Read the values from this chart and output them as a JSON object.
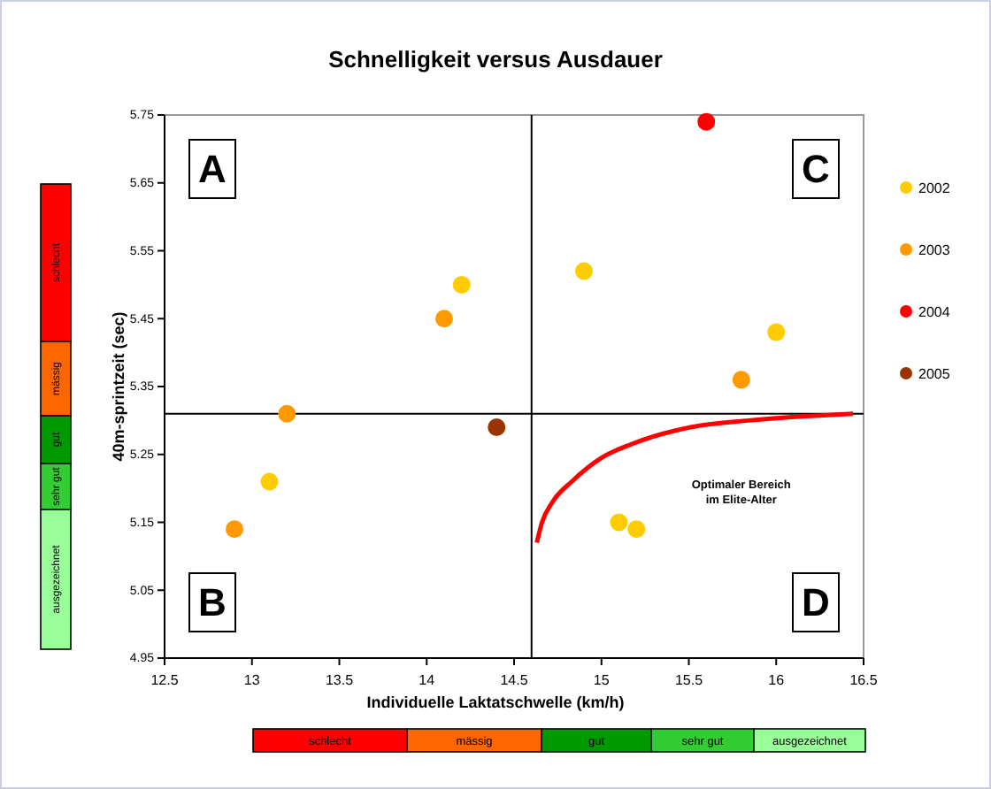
{
  "chart_data": {
    "type": "scatter",
    "title": "Schnelligkeit versus Ausdauer",
    "xlabel": "Individuelle Laktatschwelle (km/h)",
    "ylabel": "40m-sprintzeit (sec)",
    "xlim": [
      12.5,
      16.5
    ],
    "xticks": [
      12.5,
      13,
      13.5,
      14,
      14.5,
      15,
      15.5,
      16,
      16.5
    ],
    "ylim": [
      4.95,
      5.75
    ],
    "yticks": [
      4.95,
      5.05,
      5.15,
      5.25,
      5.35,
      5.45,
      5.55,
      5.65,
      5.75
    ],
    "grid": false,
    "legend": "right",
    "marker": "circle",
    "series": [
      {
        "name": "2002",
        "color": "#ffcc00",
        "x": [
          13.1,
          14.2,
          14.9,
          15.1,
          15.2,
          16.0
        ],
        "values": [
          5.21,
          5.5,
          5.52,
          5.15,
          5.14,
          5.43
        ]
      },
      {
        "name": "2003",
        "color": "#ff9900",
        "x": [
          12.9,
          13.2,
          14.1,
          15.8
        ],
        "values": [
          5.14,
          5.31,
          5.45,
          5.36
        ]
      },
      {
        "name": "2004",
        "color": "#ff0000",
        "x": [
          15.6
        ],
        "values": [
          5.74
        ]
      },
      {
        "name": "2005",
        "color": "#993300",
        "x": [
          14.4
        ],
        "values": [
          5.29
        ]
      },
      {
        "type": "line",
        "marker": "none",
        "color": "#ff0000",
        "x": [
          14.63,
          14.66,
          14.72,
          14.83,
          15.0,
          15.17,
          15.51,
          15.84,
          16.44
        ],
        "values": [
          5.12,
          5.15,
          5.18,
          5.21,
          5.245,
          5.265,
          5.29,
          5.3,
          5.31
        ]
      }
    ],
    "ref_lines": [
      {
        "axis": "x",
        "value": 14.6,
        "color": "#000000"
      },
      {
        "axis": "y",
        "value": 5.31,
        "color": "#000000"
      }
    ],
    "annotations": [
      "A",
      "B",
      "C",
      "D",
      "Optimaler Bereich\nim Elite-Alter",
      "schlecht",
      "mässig",
      "gut",
      "sehr gut",
      "ausgezeichnet",
      "schlecht",
      "mässig",
      "gut",
      "sehr gut",
      "ausgezeichnet"
    ]
  }
}
